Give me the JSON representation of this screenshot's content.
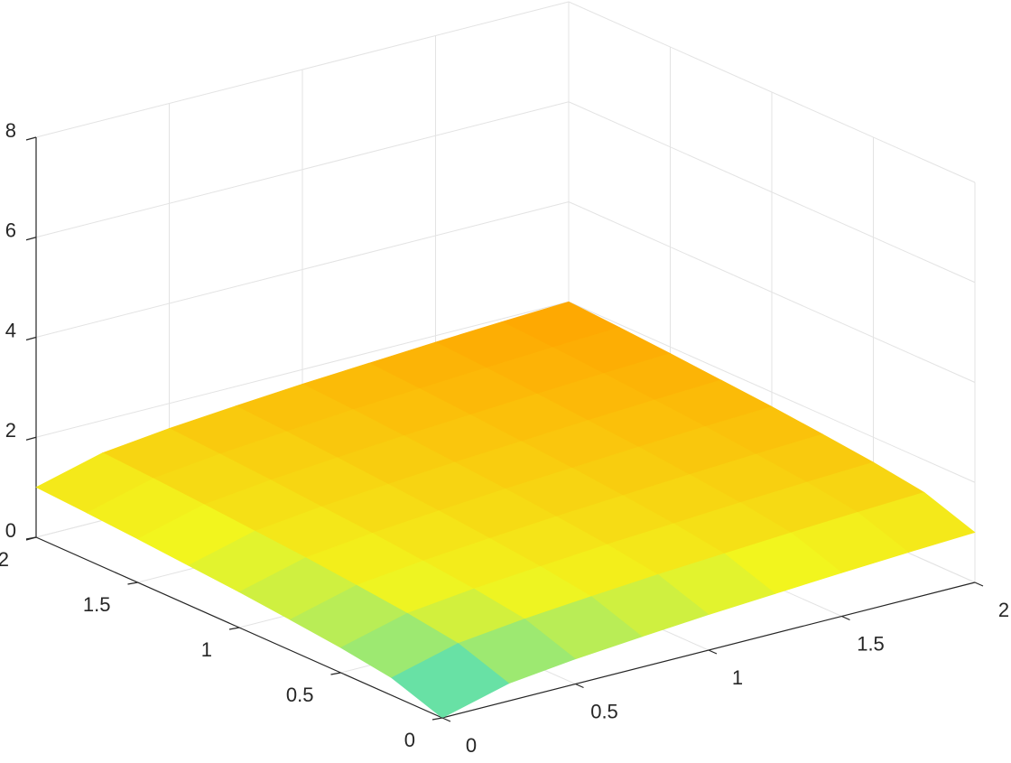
{
  "chart_data": {
    "type": "surface",
    "x": [
      0,
      0.25,
      0.5,
      0.75,
      1,
      1.25,
      1.5,
      1.75,
      2
    ],
    "y": [
      0,
      0.25,
      0.5,
      0.75,
      1,
      1.25,
      1.5,
      1.75,
      2
    ],
    "z": [
      [
        0,
        0.35,
        0.5,
        0.61,
        0.71,
        0.79,
        0.87,
        0.94,
        1
      ],
      [
        0.35,
        0.7,
        0.85,
        0.96,
        1.06,
        1.14,
        1.22,
        1.29,
        1.35
      ],
      [
        0.5,
        0.85,
        1,
        1.11,
        1.21,
        1.29,
        1.37,
        1.44,
        1.5
      ],
      [
        0.61,
        0.96,
        1.11,
        1.22,
        1.32,
        1.4,
        1.48,
        1.55,
        1.61
      ],
      [
        0.71,
        1.06,
        1.21,
        1.32,
        1.42,
        1.5,
        1.58,
        1.65,
        1.71
      ],
      [
        0.79,
        1.14,
        1.29,
        1.4,
        1.5,
        1.58,
        1.66,
        1.73,
        1.79
      ],
      [
        0.87,
        1.22,
        1.37,
        1.48,
        1.58,
        1.66,
        1.74,
        1.81,
        1.87
      ],
      [
        0.94,
        1.29,
        1.44,
        1.55,
        1.65,
        1.73,
        1.81,
        1.88,
        1.94
      ],
      [
        1,
        1.35,
        1.5,
        1.61,
        1.71,
        1.79,
        1.87,
        1.94,
        2
      ]
    ],
    "xlim": [
      0,
      2
    ],
    "ylim": [
      0,
      2
    ],
    "zlim": [
      0,
      8
    ],
    "xticks": [
      0,
      0.5,
      1,
      1.5,
      2
    ],
    "yticks": [
      0,
      0.5,
      1,
      1.5,
      2
    ],
    "zticks": [
      0,
      2,
      4,
      6,
      8
    ],
    "grid": true,
    "colormap": [
      "#1ed6ee",
      "#f2f51e",
      "#ffa400"
    ]
  }
}
